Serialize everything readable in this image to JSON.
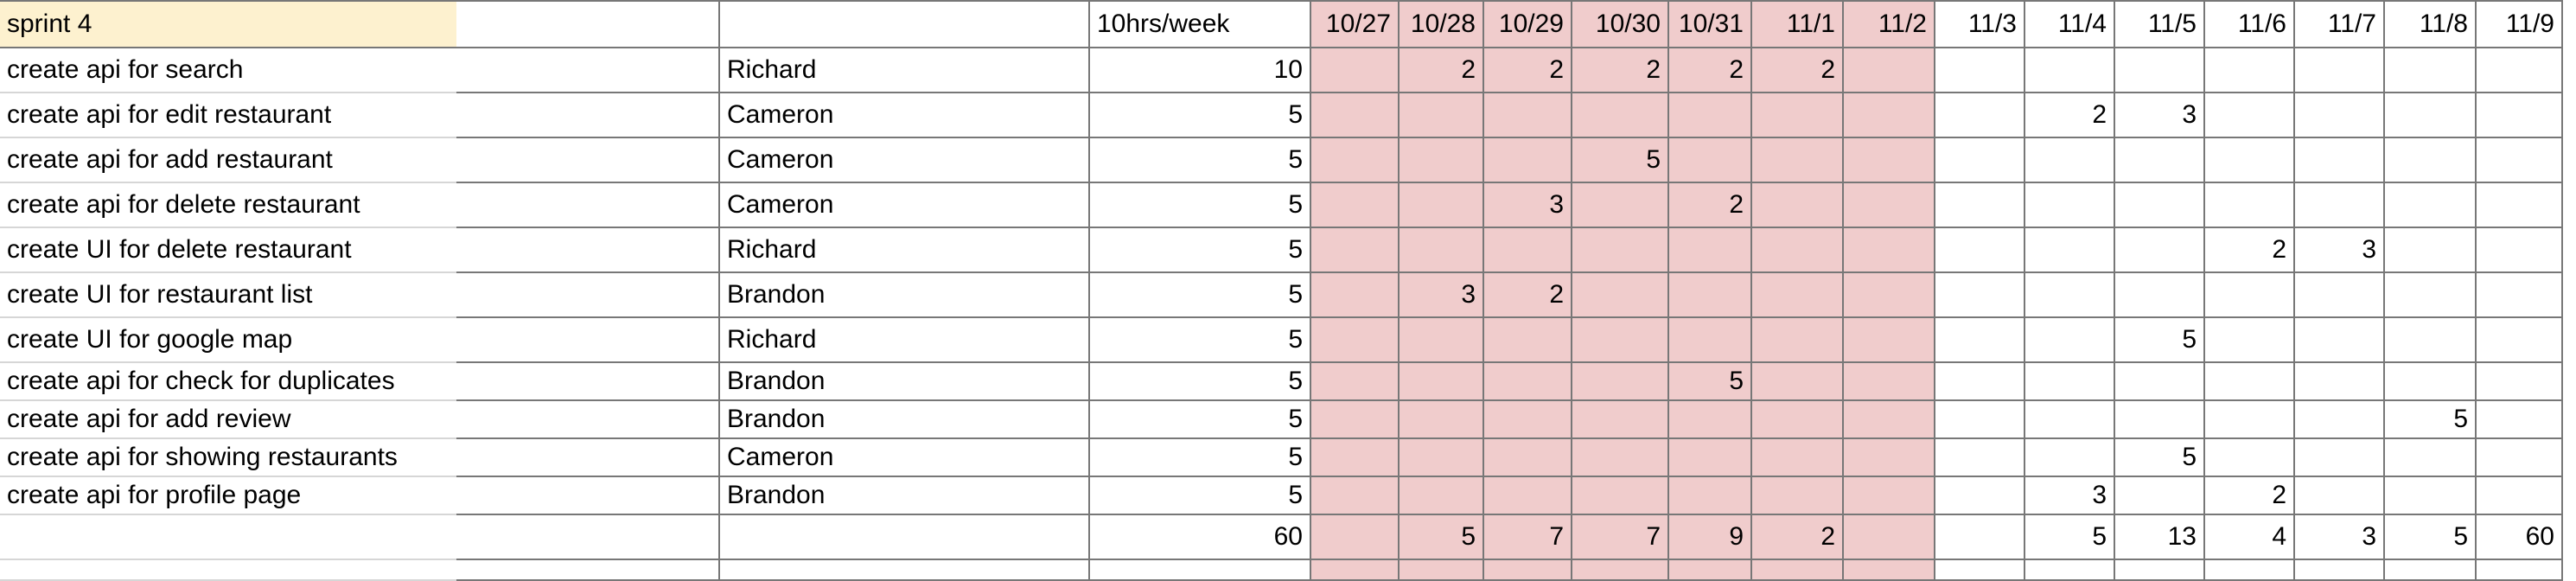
{
  "colors": {
    "header_highlight": "#fdf1cf",
    "sprint_block": "#f0cccc",
    "gridline": "#777777"
  },
  "header": {
    "sprint": "sprint 4",
    "col2": "",
    "col3": "",
    "hours": "10hrs/week",
    "dates": [
      "10/27",
      "10/28",
      "10/29",
      "10/30",
      "10/31",
      "11/1",
      "11/2",
      "11/3",
      "11/4",
      "11/5",
      "11/6",
      "11/7",
      "11/8",
      "11/9"
    ]
  },
  "rows": [
    {
      "task": "create api for search",
      "owner": "Richard",
      "hours": "10",
      "days": [
        "",
        "2",
        "2",
        "2",
        "2",
        "2",
        "",
        "",
        "",
        "",
        "",
        "",
        "",
        ""
      ]
    },
    {
      "task": "create api for edit restaurant",
      "owner": "Cameron",
      "hours": "5",
      "days": [
        "",
        "",
        "",
        "",
        "",
        "",
        "",
        "",
        "2",
        "3",
        "",
        "",
        "",
        ""
      ]
    },
    {
      "task": "create api for add restaurant",
      "owner": "Cameron",
      "hours": "5",
      "days": [
        "",
        "",
        "",
        "5",
        "",
        "",
        "",
        "",
        "",
        "",
        "",
        "",
        "",
        ""
      ]
    },
    {
      "task": "create api for delete restaurant",
      "owner": "Cameron",
      "hours": "5",
      "days": [
        "",
        "",
        "3",
        "",
        "2",
        "",
        "",
        "",
        "",
        "",
        "",
        "",
        "",
        ""
      ]
    },
    {
      "task": "create UI for delete restaurant",
      "owner": "Richard",
      "hours": "5",
      "days": [
        "",
        "",
        "",
        "",
        "",
        "",
        "",
        "",
        "",
        "",
        "2",
        "3",
        "",
        ""
      ]
    },
    {
      "task": "create UI for restaurant list",
      "owner": "Brandon",
      "hours": "5",
      "days": [
        "",
        "3",
        "2",
        "",
        "",
        "",
        "",
        "",
        "",
        "",
        "",
        "",
        "",
        ""
      ]
    },
    {
      "task": "create UI for google map",
      "owner": "Richard",
      "hours": "5",
      "days": [
        "",
        "",
        "",
        "",
        "",
        "",
        "",
        "",
        "",
        "5",
        "",
        "",
        "",
        ""
      ]
    },
    {
      "task": "create api for check for duplicates",
      "owner": "Brandon",
      "hours": "5",
      "days": [
        "",
        "",
        "",
        "",
        "5",
        "",
        "",
        "",
        "",
        "",
        "",
        "",
        "",
        ""
      ]
    },
    {
      "task": "create api for add review",
      "owner": "Brandon",
      "hours": "5",
      "days": [
        "",
        "",
        "",
        "",
        "",
        "",
        "",
        "",
        "",
        "",
        "",
        "",
        "5",
        ""
      ]
    },
    {
      "task": "create api for showing restaurants",
      "owner": "Cameron",
      "hours": "5",
      "days": [
        "",
        "",
        "",
        "",
        "",
        "",
        "",
        "",
        "",
        "5",
        "",
        "",
        "",
        ""
      ]
    },
    {
      "task": "create api for profile page",
      "owner": "Brandon",
      "hours": "5",
      "days": [
        "",
        "",
        "",
        "",
        "",
        "",
        "",
        "",
        "3",
        "",
        "2",
        "",
        "",
        ""
      ]
    }
  ],
  "totals": {
    "hours": "60",
    "days": [
      "",
      "5",
      "7",
      "7",
      "9",
      "2",
      "",
      "",
      "5",
      "13",
      "4",
      "3",
      "5",
      "60"
    ]
  }
}
